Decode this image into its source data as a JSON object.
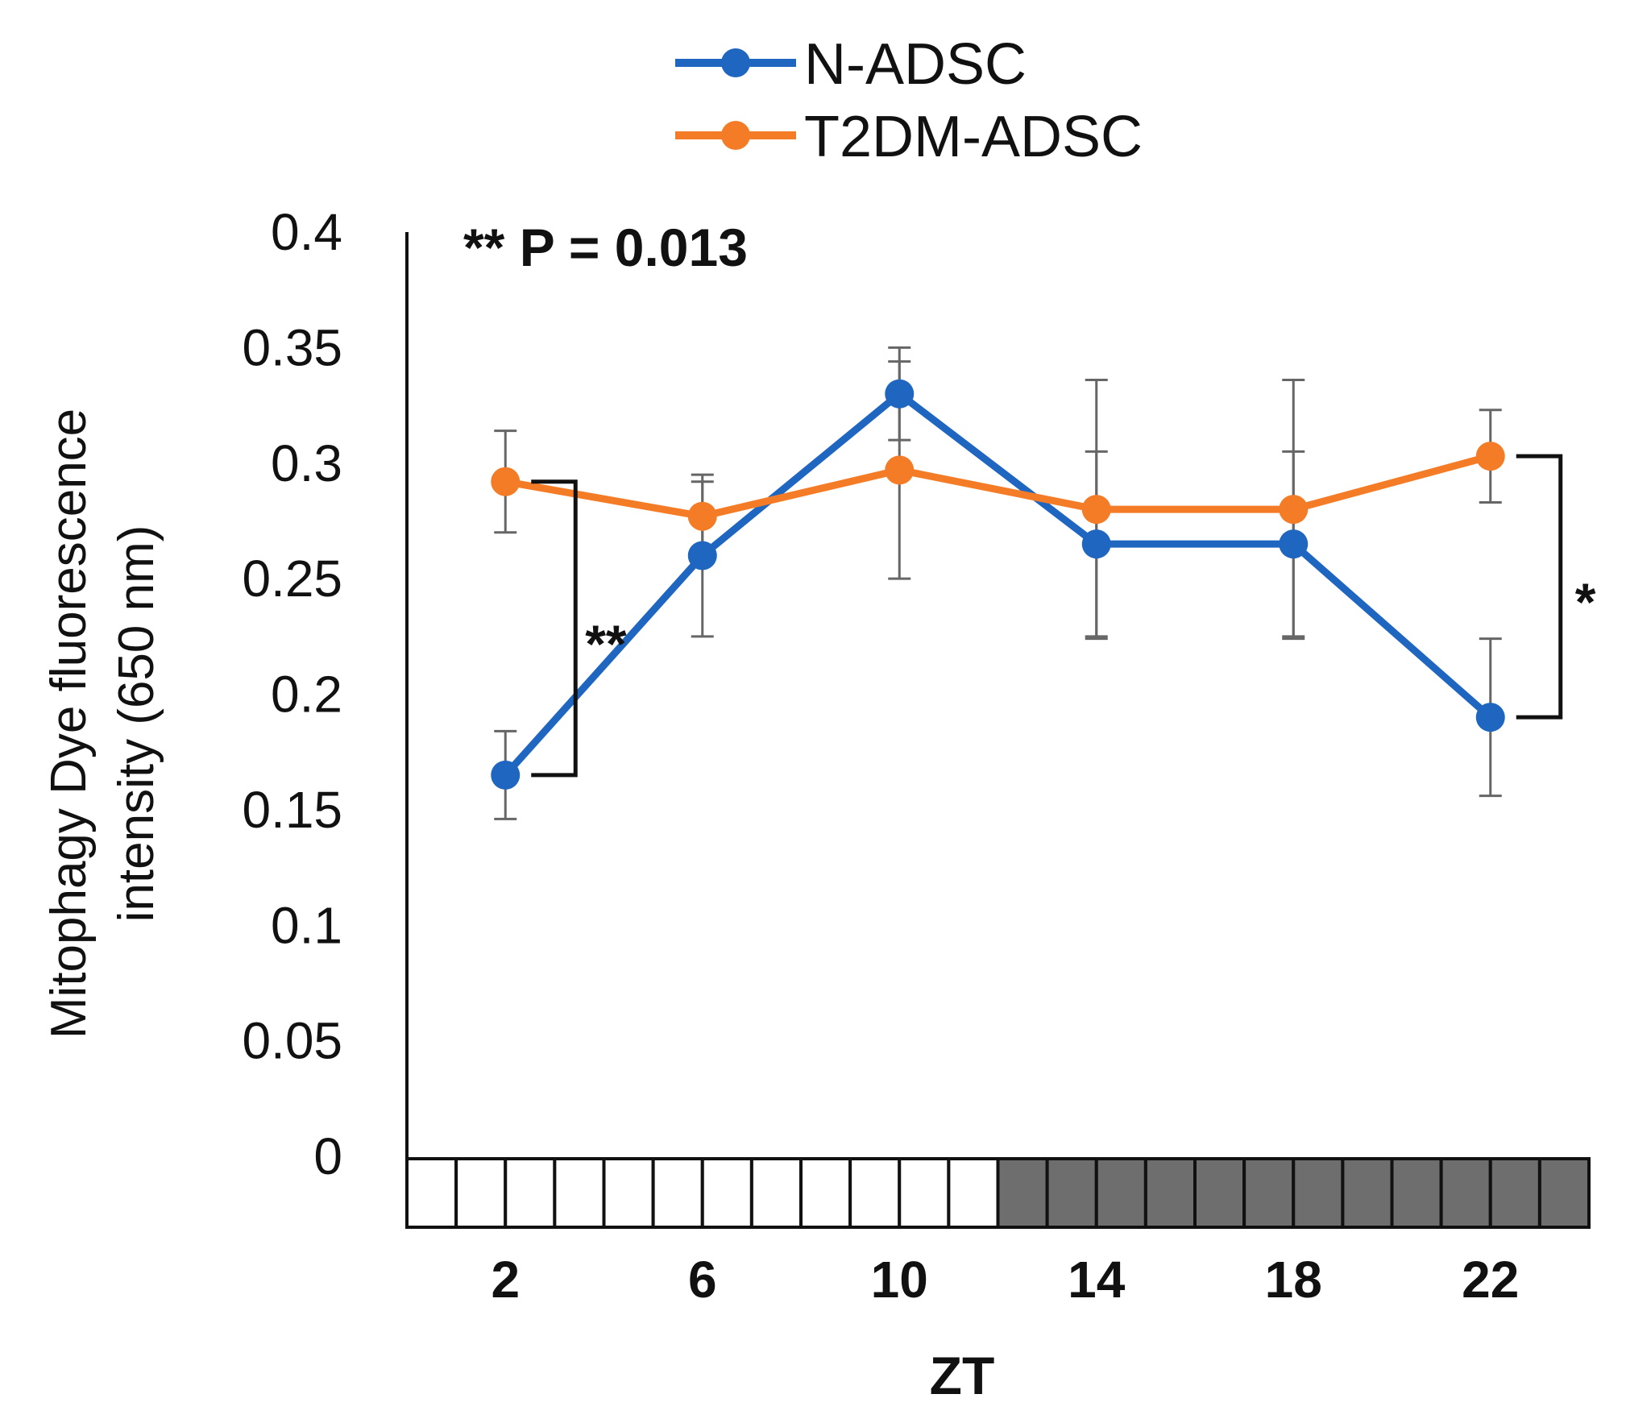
{
  "chart_data": {
    "type": "line",
    "title": "",
    "xlabel": "ZT",
    "ylabel_line1": "Mitophagy Dye fluorescence",
    "ylabel_line2": "intensity (650 nm)",
    "x": [
      2,
      6,
      10,
      14,
      18,
      22
    ],
    "x_tick_labels": [
      "2",
      "6",
      "10",
      "14",
      "18",
      "22"
    ],
    "xlim": [
      0,
      24
    ],
    "ylim": [
      0,
      0.4
    ],
    "y_ticks": [
      0,
      0.05,
      0.1,
      0.15,
      0.2,
      0.25,
      0.3,
      0.35,
      0.4
    ],
    "y_tick_labels": [
      "0",
      "0.05",
      "0.1",
      "0.15",
      "0.2",
      "0.25",
      "0.3",
      "0.35",
      "0.4"
    ],
    "grid": false,
    "legend_position": "top-center",
    "series": [
      {
        "name": "N-ADSC",
        "color": "#1f66c1",
        "values": [
          0.165,
          0.26,
          0.33,
          0.265,
          0.265,
          0.19
        ],
        "error": [
          0.019,
          0.035,
          0.02,
          0.04,
          0.04,
          0.034
        ]
      },
      {
        "name": "T2DM-ADSC",
        "color": "#f57c27",
        "values": [
          0.292,
          0.277,
          0.297,
          0.28,
          0.28,
          0.303
        ],
        "error": [
          0.022,
          0.015,
          0.047,
          0.056,
          0.056,
          0.02
        ]
      }
    ],
    "light_dark_bar": {
      "light_color": "#ffffff",
      "dark_color": "#6e6e6e",
      "segments": [
        "light",
        "light",
        "light",
        "light",
        "light",
        "light",
        "light",
        "light",
        "light",
        "light",
        "light",
        "light",
        "dark",
        "dark",
        "dark",
        "dark",
        "dark",
        "dark",
        "dark",
        "dark",
        "dark",
        "dark",
        "dark",
        "dark"
      ]
    },
    "annotations": {
      "p_value": "** P = 0.013",
      "left_bracket": {
        "x": 2,
        "y_top": 0.292,
        "y_bottom": 0.165,
        "label": "**"
      },
      "right_bracket": {
        "x": 22,
        "y_top": 0.303,
        "y_bottom": 0.19,
        "label": "*"
      }
    }
  }
}
